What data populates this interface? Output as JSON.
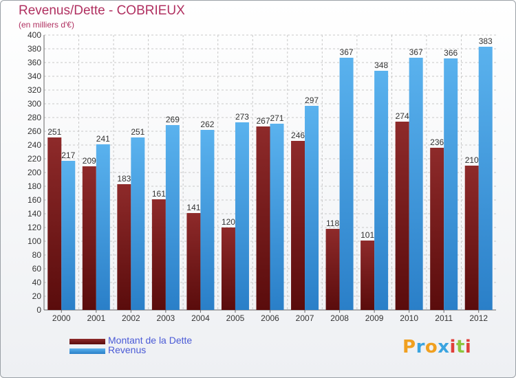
{
  "header": {
    "title": "Revenus/Dette - COBRIEUX",
    "subtitle": "(en milliers d'€)"
  },
  "legend": {
    "items": [
      {
        "label": "Montant de la Dette",
        "color": "#6e1010"
      },
      {
        "label": "Revenus",
        "color": "#4da6e8"
      }
    ]
  },
  "logo": {
    "letters": [
      "P",
      "r",
      "o",
      "x",
      "i",
      "t",
      "i"
    ],
    "colors": [
      "#f0a020",
      "#3aa4e0",
      "#f0a020",
      "#3aa4e0",
      "#e0403a",
      "#8cc63e",
      "#e0403a"
    ]
  },
  "colors": {
    "dette_dark": "#5a0c0c",
    "dette_light": "#8e2a2a",
    "revenus_dark": "#2a7fc8",
    "revenus_light": "#5ab2ee",
    "grid": "#c8c8c8",
    "axis_text": "#333333"
  },
  "chart_data": {
    "type": "bar",
    "title": "Revenus/Dette - COBRIEUX",
    "subtitle": "(en milliers d'€)",
    "xlabel": "",
    "ylabel": "",
    "ylim": [
      0,
      400
    ],
    "ytick_step": 20,
    "grid": true,
    "legend_position": "bottom-left",
    "categories": [
      "2000",
      "2001",
      "2002",
      "2003",
      "2004",
      "2005",
      "2006",
      "2007",
      "2008",
      "2009",
      "2010",
      "2011",
      "2012"
    ],
    "series": [
      {
        "name": "Montant de la Dette",
        "values": [
          251,
          209,
          183,
          161,
          141,
          120,
          267,
          246,
          118,
          101,
          274,
          236,
          210
        ]
      },
      {
        "name": "Revenus",
        "values": [
          217,
          241,
          251,
          269,
          262,
          273,
          271,
          297,
          367,
          348,
          367,
          366,
          383
        ]
      }
    ]
  }
}
